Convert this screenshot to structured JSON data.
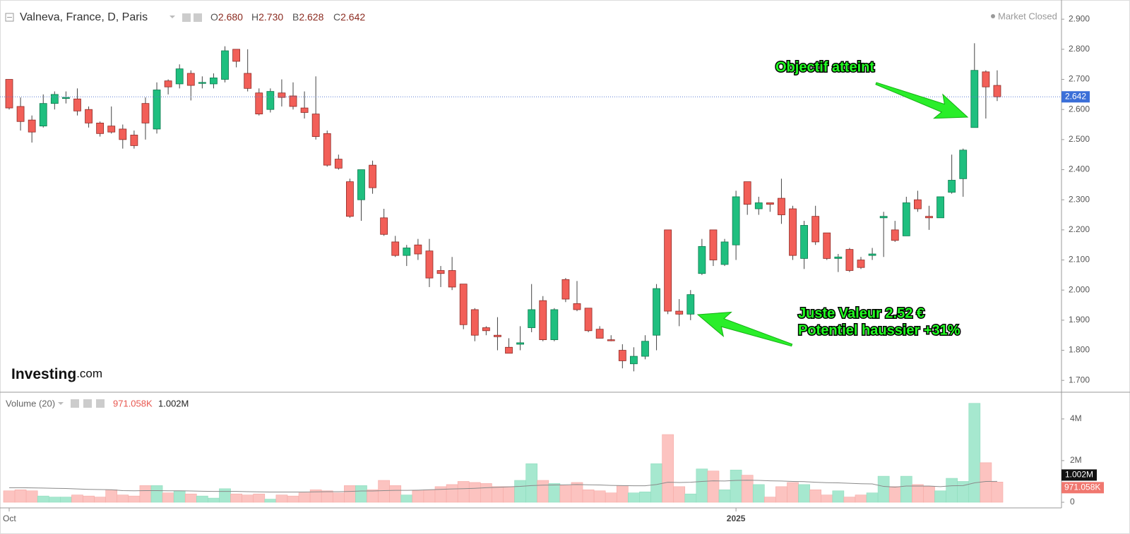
{
  "chart_data": [
    {
      "type": "candlestick",
      "title": "Valneva, France, D, Paris",
      "header": [
        {
          "label": "O",
          "value": "2.680"
        },
        {
          "label": "H",
          "value": "2.730"
        },
        {
          "label": "B",
          "value": "2.628"
        },
        {
          "label": "C",
          "value": "2.642"
        }
      ],
      "status": "Market Closed",
      "watermark": {
        "brand": "Investing",
        "suffix": ".com"
      },
      "categories": [
        "Oct",
        null,
        null,
        null,
        null,
        null,
        null,
        null,
        null,
        null,
        null,
        null,
        null,
        null,
        null,
        null,
        null,
        null,
        null,
        null,
        null,
        null,
        null,
        null,
        null,
        null,
        null,
        null,
        null,
        null,
        null,
        null,
        null,
        null,
        null,
        null,
        null,
        null,
        null,
        null,
        null,
        null,
        null,
        null,
        null,
        null,
        null,
        null,
        null,
        null,
        null,
        null,
        null,
        null,
        null,
        null,
        null,
        null,
        null,
        null,
        null,
        null,
        null,
        null,
        "2025",
        null,
        null,
        null,
        null,
        null,
        null,
        null,
        null,
        null,
        null,
        null,
        null,
        null,
        null,
        null,
        null,
        null,
        null,
        null,
        null,
        null,
        null,
        null
      ],
      "open": [
        2.7,
        2.61,
        2.565,
        2.545,
        2.62,
        2.64,
        2.635,
        2.6,
        2.555,
        2.545,
        2.535,
        2.515,
        2.62,
        2.535,
        2.695,
        2.685,
        2.72,
        2.69,
        2.685,
        2.7,
        2.8,
        2.72,
        2.655,
        2.6,
        2.655,
        2.645,
        2.605,
        2.585,
        2.52,
        2.435,
        2.36,
        2.3,
        2.415,
        2.24,
        2.16,
        2.115,
        2.15,
        2.13,
        2.065,
        2.065,
        2.02,
        1.935,
        1.875,
        1.85,
        1.81,
        1.82,
        1.875,
        1.965,
        1.835,
        2.035,
        1.955,
        1.94,
        1.87,
        1.835,
        1.8,
        1.755,
        1.78,
        1.85,
        2.2,
        1.93,
        1.92,
        2.055,
        2.2,
        2.085,
        2.15,
        2.36,
        2.27,
        2.29,
        2.305,
        2.27,
        2.105,
        2.245,
        2.19,
        2.105,
        2.135,
        2.1,
        2.115,
        2.24,
        2.2,
        2.18,
        2.3,
        2.245,
        2.24,
        2.325,
        2.37,
        2.54,
        2.725,
        2.68
      ],
      "high": [
        2.7,
        2.64,
        2.58,
        2.65,
        2.66,
        2.66,
        2.67,
        2.61,
        2.56,
        2.61,
        2.55,
        2.53,
        2.64,
        2.69,
        2.7,
        2.75,
        2.73,
        2.71,
        2.72,
        2.81,
        2.8,
        2.8,
        2.67,
        2.67,
        2.7,
        2.69,
        2.66,
        2.71,
        2.53,
        2.45,
        2.37,
        2.4,
        2.43,
        2.27,
        2.18,
        2.15,
        2.17,
        2.17,
        2.08,
        2.11,
        2.02,
        1.94,
        1.88,
        1.91,
        1.84,
        1.88,
        2.02,
        1.98,
        1.94,
        2.04,
        2.03,
        1.94,
        1.88,
        1.85,
        1.82,
        1.81,
        1.85,
        2.02,
        2.2,
        1.97,
        2.0,
        2.17,
        2.2,
        2.17,
        2.33,
        2.36,
        2.31,
        2.29,
        2.37,
        2.28,
        2.23,
        2.28,
        2.19,
        2.12,
        2.14,
        2.11,
        2.14,
        2.26,
        2.23,
        2.31,
        2.33,
        2.28,
        2.31,
        2.45,
        2.47,
        2.82,
        2.73,
        2.73
      ],
      "low": [
        2.6,
        2.53,
        2.49,
        2.54,
        2.6,
        2.62,
        2.58,
        2.54,
        2.51,
        2.52,
        2.47,
        2.47,
        2.5,
        2.52,
        2.65,
        2.67,
        2.63,
        2.67,
        2.67,
        2.69,
        2.74,
        2.66,
        2.58,
        2.59,
        2.61,
        2.6,
        2.57,
        2.5,
        2.41,
        2.4,
        2.24,
        2.23,
        2.32,
        2.18,
        2.11,
        2.08,
        2.1,
        2.01,
        2.01,
        2.0,
        1.87,
        1.83,
        1.85,
        1.8,
        1.79,
        1.8,
        1.86,
        1.83,
        1.83,
        1.96,
        1.93,
        1.86,
        1.84,
        1.83,
        1.74,
        1.73,
        1.77,
        1.8,
        1.92,
        1.88,
        1.9,
        2.05,
        2.08,
        2.08,
        2.1,
        2.25,
        2.25,
        2.26,
        2.22,
        2.1,
        2.07,
        2.15,
        2.1,
        2.06,
        2.06,
        2.07,
        2.1,
        2.11,
        2.16,
        2.18,
        2.26,
        2.2,
        2.24,
        2.32,
        2.31,
        2.54,
        2.57,
        2.628
      ],
      "close": [
        2.605,
        2.56,
        2.525,
        2.62,
        2.65,
        2.64,
        2.595,
        2.555,
        2.52,
        2.525,
        2.5,
        2.48,
        2.555,
        2.665,
        2.675,
        2.735,
        2.68,
        2.69,
        2.705,
        2.795,
        2.76,
        2.67,
        2.585,
        2.66,
        2.64,
        2.61,
        2.59,
        2.51,
        2.415,
        2.405,
        2.245,
        2.4,
        2.34,
        2.185,
        2.115,
        2.14,
        2.12,
        2.04,
        2.055,
        2.01,
        1.885,
        1.85,
        1.865,
        1.845,
        1.79,
        1.825,
        1.935,
        1.835,
        1.935,
        1.97,
        1.935,
        1.865,
        1.84,
        1.833,
        1.765,
        1.78,
        1.83,
        2.005,
        1.93,
        1.92,
        1.985,
        2.145,
        2.1,
        2.16,
        2.31,
        2.285,
        2.29,
        2.285,
        2.25,
        2.115,
        2.215,
        2.16,
        2.105,
        2.11,
        2.065,
        2.075,
        2.12,
        2.245,
        2.165,
        2.29,
        2.27,
        2.24,
        2.31,
        2.365,
        2.465,
        2.73,
        2.675,
        2.642
      ],
      "up_color": "#1fbf7f",
      "down_color": "#f25f58",
      "ylim": [
        1.663,
        2.952
      ],
      "yticks": [
        {
          "value": 2.9,
          "label": "2.900"
        },
        {
          "value": 2.8,
          "label": "2.800"
        },
        {
          "value": 2.7,
          "label": "2.700"
        },
        {
          "value": 2.6,
          "label": "2.600"
        },
        {
          "value": 2.5,
          "label": "2.500"
        },
        {
          "value": 2.4,
          "label": "2.400"
        },
        {
          "value": 2.3,
          "label": "2.300"
        },
        {
          "value": 2.2,
          "label": "2.200"
        },
        {
          "value": 2.1,
          "label": "2.100"
        },
        {
          "value": 2.0,
          "label": "2.000"
        },
        {
          "value": 1.9,
          "label": "1.900"
        },
        {
          "value": 1.8,
          "label": "1.800"
        },
        {
          "value": 1.7,
          "label": "1.700"
        }
      ],
      "last_price": 2.642,
      "annotations": [
        "Objectif atteint",
        "Juste Valeur 2.52 €",
        "Potentiel haussier +31%"
      ]
    },
    {
      "type": "bar",
      "title": "Volume (20)",
      "values": [
        550000,
        600000,
        550000,
        300000,
        250000,
        250000,
        350000,
        300000,
        250000,
        600000,
        350000,
        300000,
        800000,
        800000,
        450000,
        550000,
        400000,
        300000,
        200000,
        650000,
        400000,
        350000,
        400000,
        150000,
        350000,
        300000,
        450000,
        600000,
        550000,
        450000,
        800000,
        800000,
        600000,
        1050000,
        800000,
        350000,
        550000,
        600000,
        750000,
        850000,
        1000000,
        950000,
        900000,
        750000,
        750000,
        1050000,
        1850000,
        1050000,
        900000,
        800000,
        950000,
        600000,
        550000,
        450000,
        800000,
        450000,
        500000,
        1850000,
        3250000,
        750000,
        400000,
        1600000,
        1500000,
        600000,
        1550000,
        1300000,
        850000,
        250000,
        750000,
        950000,
        850000,
        600000,
        350000,
        550000,
        250000,
        350000,
        450000,
        1250000,
        750000,
        1250000,
        850000,
        750000,
        550000,
        1150000,
        1000000,
        4750000,
        1900000,
        971058
      ],
      "last_label": "971.058K",
      "up_color": "#a6e8cf",
      "down_color": "#fcc3c0",
      "ma_values": [
        700000,
        700000,
        690000,
        680000,
        670000,
        660000,
        640000,
        620000,
        610000,
        600000,
        560000,
        550000,
        560000,
        560000,
        550000,
        550000,
        540000,
        530000,
        520000,
        520000,
        520000,
        510000,
        500000,
        490000,
        490000,
        490000,
        490000,
        500000,
        510000,
        510000,
        520000,
        540000,
        540000,
        560000,
        570000,
        570000,
        580000,
        600000,
        620000,
        640000,
        650000,
        670000,
        700000,
        720000,
        740000,
        760000,
        800000,
        820000,
        830000,
        840000,
        850000,
        840000,
        830000,
        810000,
        800000,
        790000,
        790000,
        850000,
        960000,
        950000,
        960000,
        1000000,
        1030000,
        1020000,
        1050000,
        1060000,
        1050000,
        1030000,
        1020000,
        1000000,
        990000,
        960000,
        940000,
        930000,
        910000,
        890000,
        880000,
        760000,
        730000,
        780000,
        780000,
        780000,
        750000,
        790000,
        800000,
        930000,
        1000000,
        1002000
      ],
      "ma_last_label": "1.002M",
      "ma_color": "#8a8a8a",
      "ylim": [
        0,
        5080000
      ],
      "yticks": [
        {
          "value": 4000000,
          "label": "4M"
        },
        {
          "value": 2000000,
          "label": "2M"
        },
        0
      ]
    }
  ]
}
